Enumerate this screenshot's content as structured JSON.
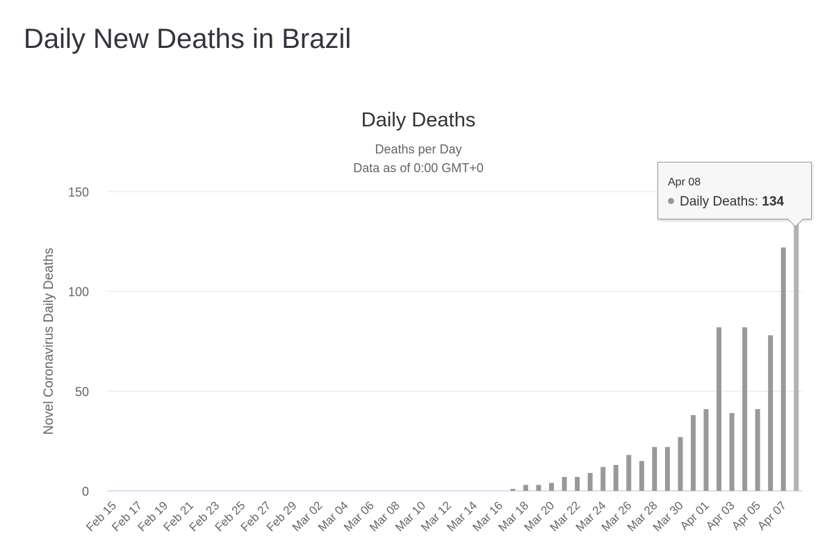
{
  "page": {
    "heading": "Daily New Deaths in Brazil"
  },
  "chart_data": {
    "type": "bar",
    "title": "Daily Deaths",
    "subtitle": "Deaths per Day",
    "subtitle2": "Data as of 0:00 GMT+0",
    "ylabel": "Novel Coronavirus Daily Deaths",
    "ylim": [
      0,
      150
    ],
    "yticks": [
      0,
      50,
      100,
      150
    ],
    "grid": true,
    "bar_color": "#999999",
    "highlight_color": "#b3b3b3",
    "series_name": "Daily Deaths",
    "categories": [
      "Feb 15",
      "Feb 16",
      "Feb 17",
      "Feb 18",
      "Feb 19",
      "Feb 20",
      "Feb 21",
      "Feb 22",
      "Feb 23",
      "Feb 24",
      "Feb 25",
      "Feb 26",
      "Feb 27",
      "Feb 28",
      "Feb 29",
      "Mar 01",
      "Mar 02",
      "Mar 03",
      "Mar 04",
      "Mar 05",
      "Mar 06",
      "Mar 07",
      "Mar 08",
      "Mar 09",
      "Mar 10",
      "Mar 11",
      "Mar 12",
      "Mar 13",
      "Mar 14",
      "Mar 15",
      "Mar 16",
      "Mar 17",
      "Mar 18",
      "Mar 19",
      "Mar 20",
      "Mar 21",
      "Mar 22",
      "Mar 23",
      "Mar 24",
      "Mar 25",
      "Mar 26",
      "Mar 27",
      "Mar 28",
      "Mar 29",
      "Mar 30",
      "Mar 31",
      "Apr 01",
      "Apr 02",
      "Apr 03",
      "Apr 04",
      "Apr 05",
      "Apr 06",
      "Apr 07",
      "Apr 08"
    ],
    "values": [
      0,
      0,
      0,
      0,
      0,
      0,
      0,
      0,
      0,
      0,
      0,
      0,
      0,
      0,
      0,
      0,
      0,
      0,
      0,
      0,
      0,
      0,
      0,
      0,
      0,
      0,
      0,
      0,
      0,
      0,
      0,
      1,
      3,
      3,
      4,
      7,
      7,
      9,
      12,
      13,
      18,
      15,
      22,
      22,
      27,
      38,
      41,
      82,
      39,
      82,
      41,
      78,
      122,
      134
    ],
    "xtick_labels": [
      "Feb 15",
      "Feb 17",
      "Feb 19",
      "Feb 21",
      "Feb 23",
      "Feb 25",
      "Feb 27",
      "Feb 29",
      "Mar 02",
      "Mar 04",
      "Mar 06",
      "Mar 08",
      "Mar 10",
      "Mar 12",
      "Mar 14",
      "Mar 16",
      "Mar 18",
      "Mar 20",
      "Mar 22",
      "Mar 24",
      "Mar 26",
      "Mar 28",
      "Mar 30",
      "Apr 01",
      "Apr 03",
      "Apr 05",
      "Apr 07"
    ],
    "tooltip": {
      "date": "Apr 08",
      "label": "Daily Deaths:",
      "value": "134"
    }
  }
}
